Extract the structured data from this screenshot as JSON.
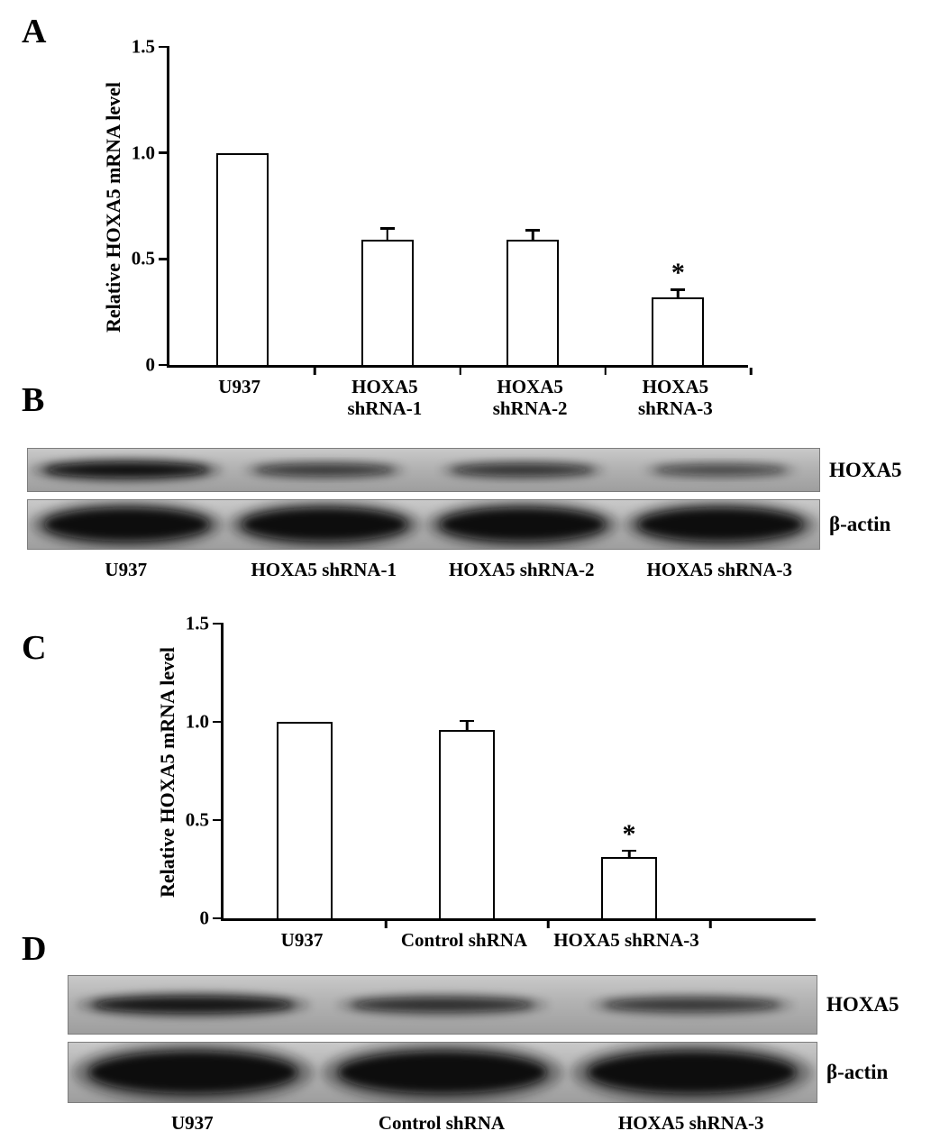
{
  "panels": {
    "A": {
      "label": "A"
    },
    "B": {
      "label": "B"
    },
    "C": {
      "label": "C"
    },
    "D": {
      "label": "D"
    }
  },
  "chart_data": [
    {
      "type": "bar",
      "panel": "A",
      "title": "",
      "xlabel": "",
      "ylabel": "Relative HOXA5 mRNA level",
      "ylim": [
        0,
        1.5
      ],
      "yticks": [
        0,
        0.5,
        1.0,
        1.5
      ],
      "grid": false,
      "bar_fill": "#ffffff",
      "bar_edge": "#000000",
      "categories": [
        "U937",
        "HOXA5 shRNA-1",
        "HOXA5 shRNA-2",
        "HOXA5 shRNA-3"
      ],
      "tick_label_lines": [
        [
          "U937"
        ],
        [
          "HOXA5",
          "shRNA-1"
        ],
        [
          "HOXA5",
          "shRNA-2"
        ],
        [
          "HOXA5",
          "shRNA-3"
        ]
      ],
      "values": [
        1.0,
        0.59,
        0.59,
        0.32
      ],
      "errors": [
        0,
        0.06,
        0.05,
        0.04
      ],
      "annotations": [
        {
          "category_index": 3,
          "text": "*"
        }
      ]
    },
    {
      "type": "bar",
      "panel": "C",
      "title": "",
      "xlabel": "",
      "ylabel": "Relative HOXA5 mRNA level",
      "ylim": [
        0,
        1.5
      ],
      "yticks": [
        0,
        0.5,
        1.0,
        1.5
      ],
      "grid": false,
      "bar_fill": "#ffffff",
      "bar_edge": "#000000",
      "categories": [
        "U937",
        "Control shRNA",
        "HOXA5 shRNA-3"
      ],
      "tick_label_lines": [
        [
          "U937"
        ],
        [
          "Control shRNA"
        ],
        [
          "HOXA5 shRNA-3"
        ]
      ],
      "values": [
        1.0,
        0.96,
        0.31
      ],
      "errors": [
        0,
        0.05,
        0.04
      ],
      "annotations": [
        {
          "category_index": 2,
          "text": "*"
        }
      ]
    }
  ],
  "blots": [
    {
      "panel": "B",
      "rows": [
        {
          "label": "HOXA5",
          "band_scale": 0.6,
          "intensities": [
            1.0,
            0.5,
            0.55,
            0.35
          ]
        },
        {
          "label": "β-actin",
          "band_scale": 1.15,
          "intensities": [
            1.0,
            1.0,
            1.0,
            1.0
          ]
        }
      ],
      "lanes": [
        "U937",
        "HOXA5 shRNA-1",
        "HOXA5 shRNA-2",
        "HOXA5 shRNA-3"
      ]
    },
    {
      "panel": "D",
      "rows": [
        {
          "label": "HOXA5",
          "band_scale": 0.5,
          "intensities": [
            0.9,
            0.6,
            0.5
          ]
        },
        {
          "label": "β-actin",
          "band_scale": 1.2,
          "intensities": [
            1.0,
            1.0,
            1.0
          ]
        }
      ],
      "lanes": [
        "U937",
        "Control shRNA",
        "HOXA5 shRNA-3"
      ]
    }
  ]
}
